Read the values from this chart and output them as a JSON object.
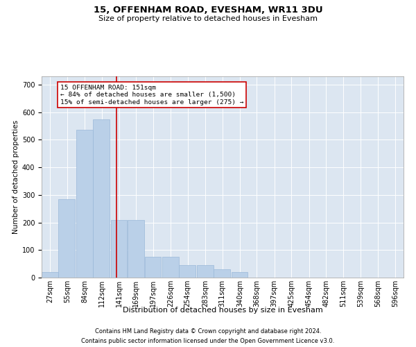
{
  "title": "15, OFFENHAM ROAD, EVESHAM, WR11 3DU",
  "subtitle": "Size of property relative to detached houses in Evesham",
  "xlabel": "Distribution of detached houses by size in Evesham",
  "ylabel": "Number of detached properties",
  "footnote1": "Contains HM Land Registry data © Crown copyright and database right 2024.",
  "footnote2": "Contains public sector information licensed under the Open Government Licence v3.0.",
  "annotation_line1": "15 OFFENHAM ROAD: 151sqm",
  "annotation_line2": "← 84% of detached houses are smaller (1,500)",
  "annotation_line3": "15% of semi-detached houses are larger (275) →",
  "bar_color": "#bad0e8",
  "bar_edge_color": "#9ab8d8",
  "redline_x": 151,
  "redline_color": "#cc0000",
  "background_color": "#dce6f1",
  "categories": [
    "27sqm",
    "55sqm",
    "84sqm",
    "112sqm",
    "141sqm",
    "169sqm",
    "197sqm",
    "226sqm",
    "254sqm",
    "283sqm",
    "311sqm",
    "340sqm",
    "368sqm",
    "397sqm",
    "425sqm",
    "454sqm",
    "482sqm",
    "511sqm",
    "539sqm",
    "568sqm",
    "596sqm"
  ],
  "bin_starts": [
    27,
    55,
    84,
    112,
    141,
    169,
    197,
    226,
    254,
    283,
    311,
    340,
    368,
    397,
    425,
    454,
    482,
    511,
    539,
    568,
    596
  ],
  "bin_width": 28,
  "bar_heights": [
    20,
    285,
    535,
    575,
    210,
    210,
    75,
    75,
    45,
    45,
    30,
    20,
    0,
    0,
    0,
    0,
    0,
    0,
    0,
    0,
    0
  ],
  "ylim": [
    0,
    730
  ],
  "yticks": [
    0,
    100,
    200,
    300,
    400,
    500,
    600,
    700
  ],
  "title_fontsize": 9.5,
  "subtitle_fontsize": 8,
  "ylabel_fontsize": 7.5,
  "xlabel_fontsize": 8,
  "tick_fontsize": 7,
  "footnote_fontsize": 6
}
